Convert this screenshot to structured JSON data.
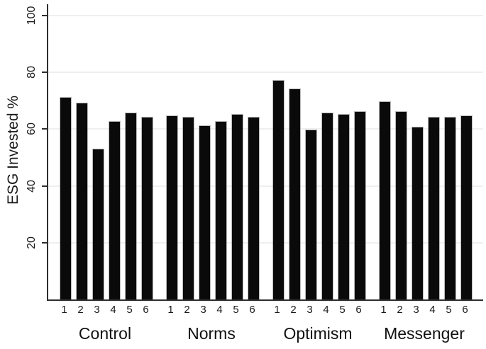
{
  "chart_data": {
    "type": "bar",
    "title": "",
    "xlabel": "",
    "ylabel": "ESG Invested %",
    "ylim": [
      0,
      104
    ],
    "y_ticks": [
      20,
      40,
      60,
      80,
      100
    ],
    "grid": "horizontal gridlines at y ticks, light gray, on",
    "legend": "none",
    "bar_color": "#0a0a0a",
    "axis_color": "#2e2e2e",
    "gridline_color": "#efefef",
    "bar_labels": [
      "1",
      "2",
      "3",
      "4",
      "5",
      "6"
    ],
    "groups": [
      {
        "label": "Control",
        "values": [
          71,
          69,
          53,
          62.5,
          65.5,
          64
        ]
      },
      {
        "label": "Norms",
        "values": [
          64.5,
          64,
          61,
          62.5,
          65,
          64
        ]
      },
      {
        "label": "Optimism",
        "values": [
          77,
          74,
          59.5,
          65.5,
          65,
          66
        ]
      },
      {
        "label": "Messenger",
        "values": [
          69.5,
          66,
          60.5,
          64,
          64,
          64.5
        ]
      }
    ]
  }
}
